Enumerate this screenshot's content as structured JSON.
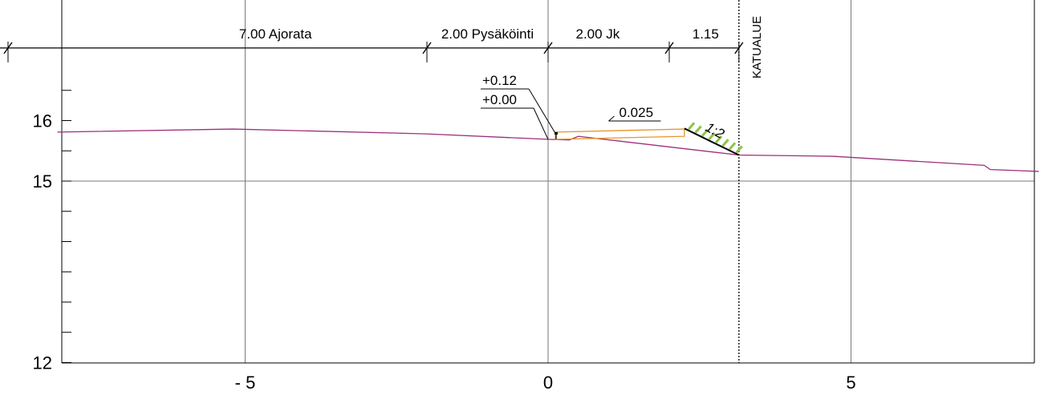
{
  "chart_data": {
    "type": "cross-section",
    "xlim": [
      -8.1,
      8.1
    ],
    "ylim": [
      12,
      16
    ],
    "x_ticks": [
      {
        "value": -5,
        "label": "- 5"
      },
      {
        "value": 0,
        "label": "0"
      },
      {
        "value": 5,
        "label": "5"
      }
    ],
    "y_ticks": [
      {
        "value": 12,
        "label": "12"
      },
      {
        "value": 15,
        "label": "15"
      },
      {
        "value": 16,
        "label": "16"
      }
    ],
    "grid": true,
    "dimensions": {
      "level": 17.2,
      "ticks": [
        -9.0,
        -2.0,
        0.0,
        2.0,
        3.15
      ],
      "segments": [
        {
          "label": "7.00 Ajorata",
          "center": -4.5
        },
        {
          "label": "2.00 Pysäköinti",
          "center": -1.0
        },
        {
          "label": "2.00 Jk",
          "center": 0.82
        },
        {
          "label": "1.15",
          "center": 2.6
        }
      ]
    },
    "street_boundary": {
      "x": 3.15,
      "label": "KATUALUE"
    },
    "existing_ground": {
      "name": "",
      "color": "#9c2f7b",
      "points": [
        [
          -8.1,
          15.81
        ],
        [
          -5.2,
          15.86
        ],
        [
          -2.0,
          15.78
        ],
        [
          0.0,
          15.69
        ],
        [
          0.35,
          15.68
        ],
        [
          0.5,
          15.74
        ],
        [
          3.15,
          15.43
        ],
        [
          4.7,
          15.41
        ],
        [
          7.2,
          15.26
        ],
        [
          7.3,
          15.19
        ],
        [
          8.1,
          15.16
        ]
      ]
    },
    "design_surface": {
      "color": "#e8952a",
      "points": [
        [
          0.12,
          15.81
        ],
        [
          2.25,
          15.86
        ],
        [
          2.25,
          15.74
        ],
        [
          0.12,
          15.69
        ]
      ]
    },
    "curb_values": [
      {
        "label": "+0.12"
      },
      {
        "label": "+0.00"
      }
    ],
    "crossfall": {
      "label": "0.025"
    },
    "slope": {
      "label": "1:2",
      "color": "#8bc34a",
      "points": [
        [
          2.25,
          15.87
        ],
        [
          3.15,
          15.43
        ]
      ]
    }
  }
}
